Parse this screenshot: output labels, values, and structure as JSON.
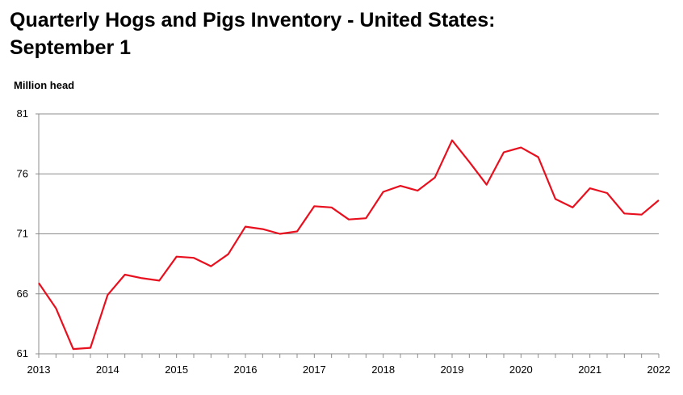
{
  "chart_data": {
    "type": "line",
    "title": [
      "Quarterly Hogs and Pigs Inventory - United States:",
      "September 1"
    ],
    "ylabel": "Million head",
    "xlabel": "",
    "ylim": [
      61,
      81
    ],
    "yticks": [
      61,
      66,
      71,
      76,
      81
    ],
    "xlim": [
      2013,
      2022
    ],
    "xticks": [
      2013,
      2014,
      2015,
      2016,
      2017,
      2018,
      2019,
      2020,
      2021,
      2022
    ],
    "grid": "horizontal",
    "series": [
      {
        "color": "#e8101e",
        "x": [
          2013,
          2013.25,
          2013.5,
          2013.75,
          2014,
          2014.25,
          2014.5,
          2014.75,
          2015,
          2015.25,
          2015.5,
          2015.75,
          2016,
          2016.25,
          2016.5,
          2016.75,
          2017,
          2017.25,
          2017.5,
          2017.75,
          2018,
          2018.25,
          2018.5,
          2018.75,
          2019,
          2019.25,
          2019.5,
          2019.75,
          2020,
          2020.25,
          2020.5,
          2020.75,
          2021,
          2021.25,
          2021.5,
          2021.75,
          2022
        ],
        "values": [
          66.9,
          64.8,
          61.4,
          61.5,
          65.9,
          67.6,
          67.3,
          67.1,
          69.1,
          69.0,
          68.3,
          69.3,
          71.6,
          71.4,
          71.0,
          71.2,
          73.3,
          73.2,
          72.2,
          72.3,
          74.5,
          75.0,
          74.6,
          75.7,
          78.8,
          77.0,
          75.1,
          77.8,
          78.2,
          77.4,
          73.9,
          73.2,
          74.8,
          74.4,
          72.7,
          72.6,
          73.8
        ]
      }
    ]
  }
}
